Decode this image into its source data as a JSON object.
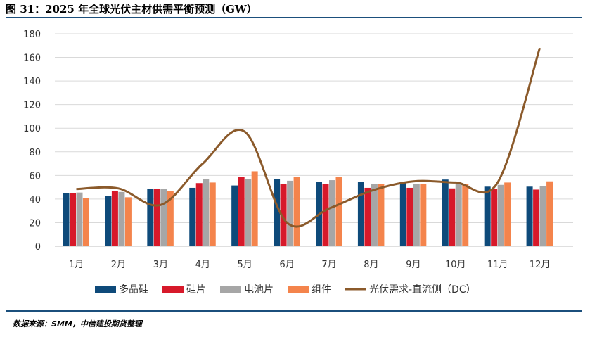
{
  "title": "图 31：2025 年全球光伏主材供需平衡预测（GW）",
  "source": "数据来源：SMM，中信建投期货整理",
  "chart_data": {
    "type": "bar",
    "title": "图 31：2025 年全球光伏主材供需平衡预测（GW）",
    "categories": [
      "1月",
      "2月",
      "3月",
      "4月",
      "5月",
      "6月",
      "7月",
      "8月",
      "9月",
      "10月",
      "11月",
      "12月"
    ],
    "ylim": [
      0,
      180
    ],
    "yticks": [
      0,
      20,
      40,
      60,
      80,
      100,
      120,
      140,
      160,
      180
    ],
    "grid": true,
    "legend_position": "bottom",
    "series": [
      {
        "name": "多晶硅",
        "type": "bar",
        "color": "#0e4a7a",
        "values": [
          45,
          42.5,
          48.5,
          49.5,
          51.5,
          57,
          54.5,
          54.5,
          54.5,
          56.5,
          50.5,
          50.5
        ]
      },
      {
        "name": "硅片",
        "type": "bar",
        "color": "#d7192a",
        "values": [
          45,
          47,
          48.5,
          53.5,
          59,
          53,
          53,
          49.5,
          49.5,
          49,
          48.5,
          48
        ]
      },
      {
        "name": "电池片",
        "type": "bar",
        "color": "#a6a6a6",
        "values": [
          45.5,
          46,
          48.5,
          57,
          57,
          55.5,
          56,
          53,
          53,
          53,
          52,
          51
        ]
      },
      {
        "name": "组件",
        "type": "bar",
        "color": "#f4844c",
        "values": [
          41,
          41.5,
          47,
          54,
          63.5,
          59,
          59,
          53,
          53,
          53,
          54,
          55
        ]
      },
      {
        "name": "光伏需求-直流侧（DC）",
        "type": "line",
        "color": "#8b5a2b",
        "values": [
          48.5,
          49,
          35,
          70,
          97,
          20,
          32,
          47,
          55,
          54,
          54,
          168
        ]
      }
    ]
  }
}
